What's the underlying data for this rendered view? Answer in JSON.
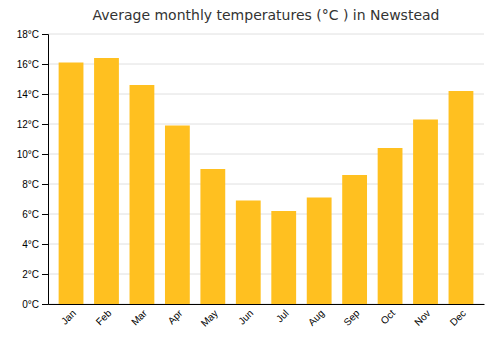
{
  "chart_data": {
    "type": "bar",
    "title": "Average monthly temperatures (°C ) in Newstead",
    "categories": [
      "Jan",
      "Feb",
      "Mar",
      "Apr",
      "May",
      "Jun",
      "Jul",
      "Aug",
      "Sep",
      "Oct",
      "Nov",
      "Dec"
    ],
    "values": [
      16.1,
      16.4,
      14.6,
      11.9,
      9.0,
      6.9,
      6.2,
      7.1,
      8.6,
      10.4,
      12.3,
      14.2
    ],
    "color": "#FFC020",
    "ylim": [
      0,
      18
    ],
    "yticks": [
      {
        "value": 0,
        "label": "0°C"
      },
      {
        "value": 2,
        "label": "2°C"
      },
      {
        "value": 4,
        "label": "4°C"
      },
      {
        "value": 6,
        "label": "6°C"
      },
      {
        "value": 8,
        "label": "8°C"
      },
      {
        "value": 10,
        "label": "10°C"
      },
      {
        "value": 12,
        "label": "12°C"
      },
      {
        "value": 14,
        "label": "14°C"
      },
      {
        "value": 16,
        "label": "16°C"
      },
      {
        "value": 18,
        "label": "18°C"
      }
    ],
    "grid": true
  }
}
